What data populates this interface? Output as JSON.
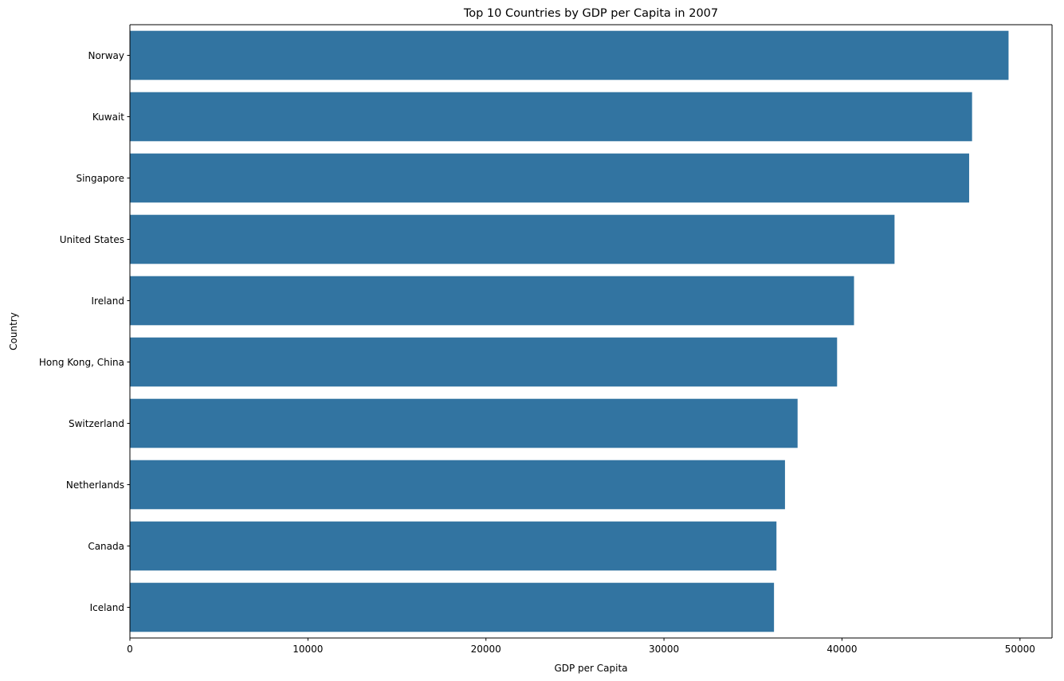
{
  "chart_data": {
    "type": "bar",
    "orientation": "horizontal",
    "title": "Top 10 Countries by GDP per Capita in 2007",
    "xlabel": "GDP per Capita",
    "ylabel": "Country",
    "categories": [
      "Norway",
      "Kuwait",
      "Singapore",
      "United States",
      "Ireland",
      "Hong Kong, China",
      "Switzerland",
      "Netherlands",
      "Canada",
      "Iceland"
    ],
    "values": [
      49357,
      47307,
      47143,
      42952,
      40676,
      39725,
      37506,
      36798,
      36319,
      36181
    ],
    "xlim": [
      0,
      51800
    ],
    "xticks": [
      0,
      10000,
      20000,
      30000,
      40000,
      50000
    ],
    "xtick_labels": [
      "0",
      "10000",
      "20000",
      "30000",
      "40000",
      "50000"
    ],
    "grid": false,
    "bar_color": "#3274a1"
  }
}
